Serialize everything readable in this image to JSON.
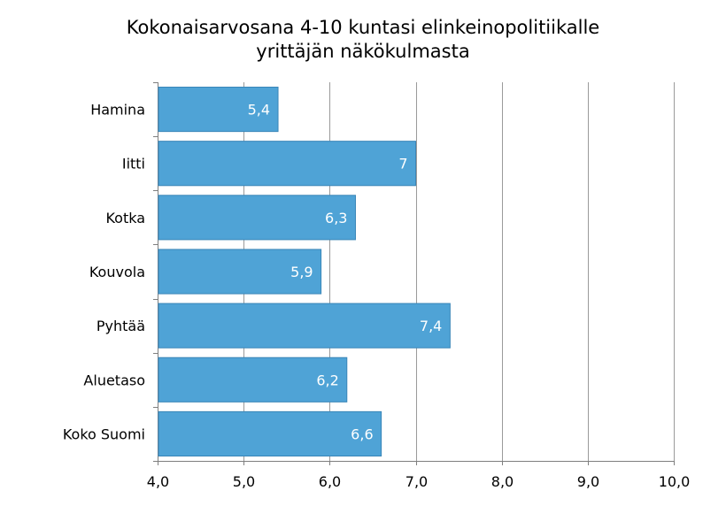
{
  "chart_data": {
    "type": "bar",
    "orientation": "horizontal",
    "title_lines": [
      "Kokonaisarvosana 4-10 kuntasi elinkeinopolitiikalle",
      "yrittäjän näkökulmasta"
    ],
    "categories": [
      "Hamina",
      "Iitti",
      "Kotka",
      "Kouvola",
      "Pyhtää",
      "Aluetaso",
      "Koko Suomi"
    ],
    "values": [
      5.4,
      7.0,
      6.3,
      5.9,
      7.4,
      6.2,
      6.6
    ],
    "data_labels": [
      "5,4",
      "7",
      "6,3",
      "5,9",
      "7,4",
      "6,2",
      "6,6"
    ],
    "xlim": [
      4.0,
      10.0
    ],
    "x_ticks": [
      4.0,
      5.0,
      6.0,
      7.0,
      8.0,
      9.0,
      10.0
    ],
    "x_tick_labels": [
      "4,0",
      "5,0",
      "6,0",
      "7,0",
      "8,0",
      "9,0",
      "10,0"
    ],
    "xlabel": "",
    "ylabel": "",
    "grid": "vertical",
    "legend": "none",
    "bar_color": "#4fa3d6",
    "bar_edge_color": "#3a86b8"
  }
}
